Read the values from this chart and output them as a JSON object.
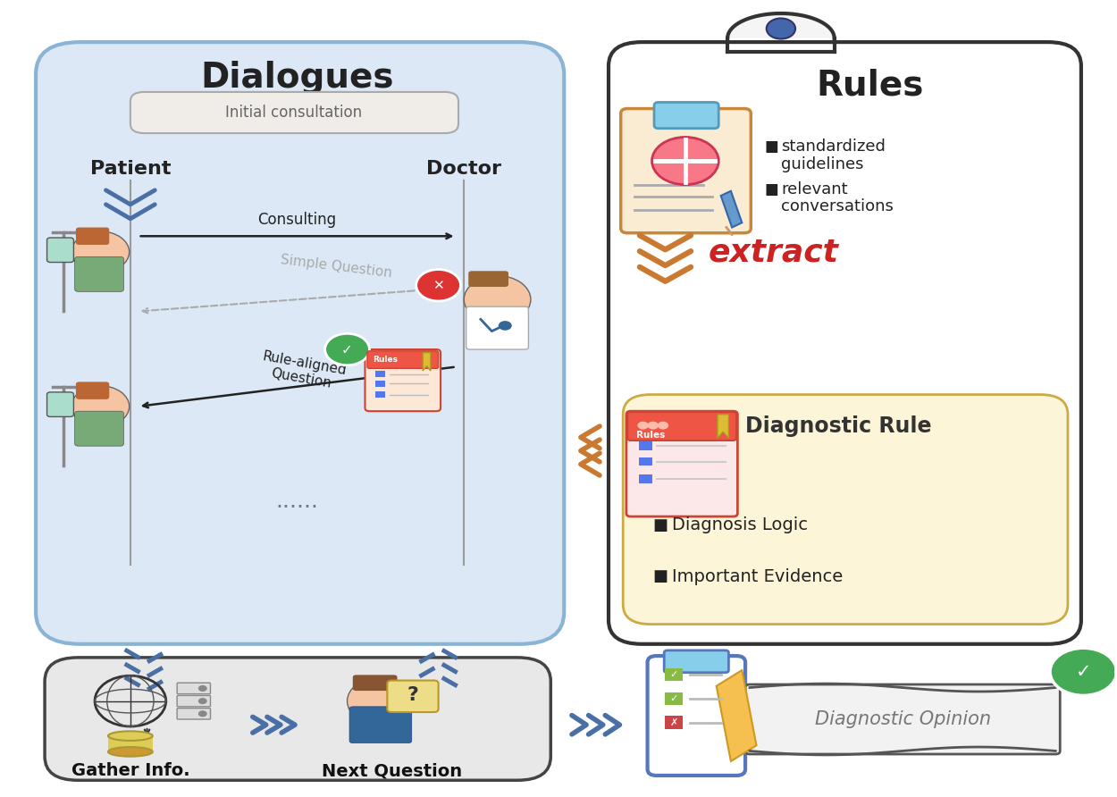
{
  "bg_color": "#ffffff",
  "fig_width": 12.5,
  "fig_height": 8.92,
  "colors": {
    "dialogues_bg": "#dce8f5",
    "dialogues_border": "#8ab4d4",
    "rules_bg": "#ffffff",
    "rules_border": "#333333",
    "diag_rule_bg": "#fdf5d8",
    "diag_rule_border": "#ccaa44",
    "bottom_box_bg": "#e8e8e8",
    "bottom_box_border": "#444444",
    "blue_chevron": "#4a6fa5",
    "orange_chevron": "#c97a30",
    "red_text": "#cc2222",
    "dark": "#222222",
    "gray": "#888888",
    "light_gray": "#aaaaaa",
    "green": "#44aa55",
    "red_circle": "#dd3333",
    "skin": "#f5c5a3",
    "hair_brown": "#bb6633",
    "body_green": "#77aa77",
    "body_blue": "#336699",
    "white": "#ffffff",
    "initial_bg": "#f0ede8",
    "initial_border": "#aaaaaa"
  },
  "text": {
    "dialogues_title": "Dialogues",
    "rules_title": "Rules",
    "patient": "Patient",
    "doctor": "Doctor",
    "initial_consultation": "Initial consultation",
    "consulting": "Consulting",
    "simple_question": "Simple Question",
    "rule_aligned": "Rule-aligned\nQuestion",
    "dots": "......",
    "extract": "extract",
    "standardized": "standardized\nguidelines",
    "relevant": "relevant\nconversations",
    "diagnostic_rule_title": "Diagnostic Rule",
    "diagnosis_logic": "Diagnosis Logic",
    "important_evidence": "Important Evidence",
    "gather_info": "Gather Info.",
    "next_question": "Next Question",
    "diagnostic_opinion": "Diagnostic Opinion",
    "rules_label": "Rules"
  }
}
